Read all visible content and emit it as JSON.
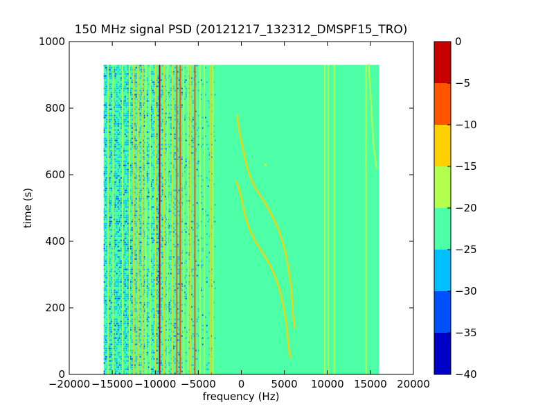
{
  "chart_data": {
    "type": "heatmap",
    "title": "150 MHz signal PSD (20121217_132312_DMSPF15_TRO)",
    "xlabel": "frequency (Hz)",
    "ylabel": "time (s)",
    "xlim": [
      -20000,
      20000
    ],
    "ylim": [
      0,
      1000
    ],
    "xticks": [
      -20000,
      -15000,
      -10000,
      -5000,
      0,
      5000,
      10000,
      15000,
      20000
    ],
    "yticks": [
      0,
      200,
      400,
      600,
      800,
      1000
    ],
    "data_extent": {
      "x": [
        -16000,
        16000
      ],
      "y": [
        0,
        930
      ]
    },
    "background_level": -22,
    "colorbar": {
      "ticks": [
        0,
        -5,
        -10,
        -15,
        -20,
        -25,
        -30,
        -35,
        -40
      ],
      "range": [
        -40,
        0
      ],
      "levels": [
        {
          "from": -40,
          "to": -35,
          "color": "#0000c8"
        },
        {
          "from": -35,
          "to": -30,
          "color": "#0050ff"
        },
        {
          "from": -30,
          "to": -25,
          "color": "#00c0ff"
        },
        {
          "from": -25,
          "to": -20,
          "color": "#4dffa6"
        },
        {
          "from": -20,
          "to": -15,
          "color": "#b2ff4d"
        },
        {
          "from": -15,
          "to": -10,
          "color": "#ffd000"
        },
        {
          "from": -10,
          "to": -5,
          "color": "#ff5500"
        },
        {
          "from": -5,
          "to": 0,
          "color": "#c80000"
        }
      ]
    },
    "noise_region": {
      "x": [
        -16000,
        -3000
      ],
      "y": [
        0,
        930
      ],
      "level": -28
    },
    "vertical_lines": [
      {
        "x": -15500,
        "level": -17
      },
      {
        "x": -14900,
        "level": -17
      },
      {
        "x": -13800,
        "level": -16
      },
      {
        "x": -13000,
        "level": -17
      },
      {
        "x": -12500,
        "level": -14
      },
      {
        "x": -12000,
        "level": -13
      },
      {
        "x": -11500,
        "level": -14
      },
      {
        "x": -11100,
        "level": -17
      },
      {
        "x": -10600,
        "level": -15
      },
      {
        "x": -10000,
        "level": -12
      },
      {
        "x": -9500,
        "level": -3
      },
      {
        "x": -9000,
        "level": -10
      },
      {
        "x": -8600,
        "level": -15
      },
      {
        "x": -8000,
        "level": -13
      },
      {
        "x": -7500,
        "level": -6
      },
      {
        "x": -7100,
        "level": -5
      },
      {
        "x": -6700,
        "level": -15
      },
      {
        "x": -6200,
        "level": -16
      },
      {
        "x": -5900,
        "level": -14
      },
      {
        "x": -5400,
        "level": -6
      },
      {
        "x": -4800,
        "level": -17
      },
      {
        "x": -4300,
        "level": -16
      },
      {
        "x": -3600,
        "level": -10
      },
      {
        "x": -3300,
        "level": -17
      },
      {
        "x": 9700,
        "level": -17
      },
      {
        "x": 10100,
        "level": -17
      },
      {
        "x": 10800,
        "level": -17
      },
      {
        "x": 14500,
        "level": -17
      }
    ],
    "curves": [
      {
        "level": -10,
        "points": [
          [
            -500,
            780
          ],
          [
            -300,
            740
          ],
          [
            0,
            700
          ],
          [
            400,
            650
          ],
          [
            800,
            610
          ],
          [
            1400,
            570
          ],
          [
            2000,
            545
          ],
          [
            3000,
            505
          ],
          [
            3800,
            465
          ],
          [
            4400,
            430
          ],
          [
            5000,
            380
          ],
          [
            5400,
            330
          ],
          [
            5800,
            260
          ],
          [
            6000,
            180
          ],
          [
            6200,
            140
          ]
        ]
      },
      {
        "level": -13,
        "points": [
          [
            -600,
            580
          ],
          [
            -300,
            560
          ],
          [
            0,
            530
          ],
          [
            400,
            480
          ],
          [
            900,
            440
          ],
          [
            1600,
            400
          ],
          [
            2500,
            365
          ],
          [
            3300,
            330
          ],
          [
            4000,
            290
          ],
          [
            4600,
            240
          ],
          [
            5000,
            190
          ],
          [
            5300,
            140
          ],
          [
            5500,
            80
          ],
          [
            5700,
            50
          ]
        ]
      },
      {
        "level": -16,
        "points": [
          [
            14800,
            930
          ],
          [
            15000,
            850
          ],
          [
            15200,
            760
          ],
          [
            15400,
            680
          ],
          [
            15700,
            620
          ]
        ]
      }
    ],
    "spots": [
      {
        "x": 2800,
        "y": 630,
        "level": -15
      }
    ]
  }
}
